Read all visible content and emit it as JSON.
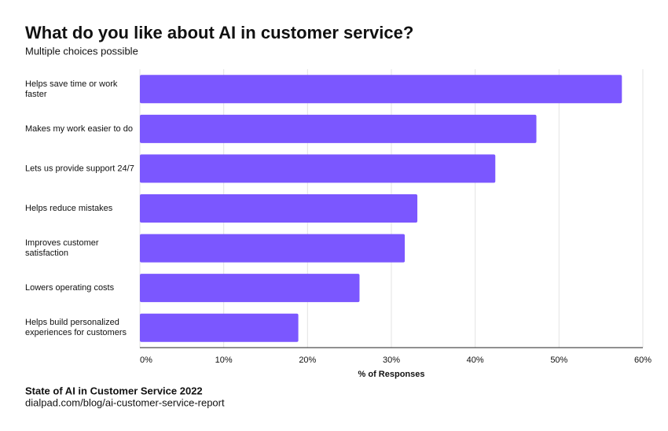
{
  "chart_data": {
    "type": "hbar",
    "title": "What do you like about AI in customer service?",
    "subtitle": "Multiple choices possible",
    "categories": [
      "Helps save time or work faster",
      "Makes my work easier to do",
      "Lets us provide support 24/7",
      "Helps reduce mistakes",
      "Improves customer satisfaction",
      "Lowers operating costs",
      "Helps build personalized experiences for customers"
    ],
    "values": [
      57.5,
      47.3,
      42.4,
      33.1,
      31.6,
      26.2,
      18.9
    ],
    "color": "#7b57ff",
    "xlim": [
      0,
      60
    ],
    "xticks": [
      {
        "value": 0,
        "label": "0%"
      },
      {
        "value": 10,
        "label": "10%"
      },
      {
        "value": 20,
        "label": "20%"
      },
      {
        "value": 30,
        "label": "30%"
      },
      {
        "value": 40,
        "label": "40%"
      },
      {
        "value": 50,
        "label": "50%"
      },
      {
        "value": 60,
        "label": "60%"
      }
    ],
    "grid": true,
    "x_label": "% of Responses",
    "source": "State of AI in Customer Service 2022",
    "source_url": "dialpad.com/blog/ai-customer-service-report"
  }
}
